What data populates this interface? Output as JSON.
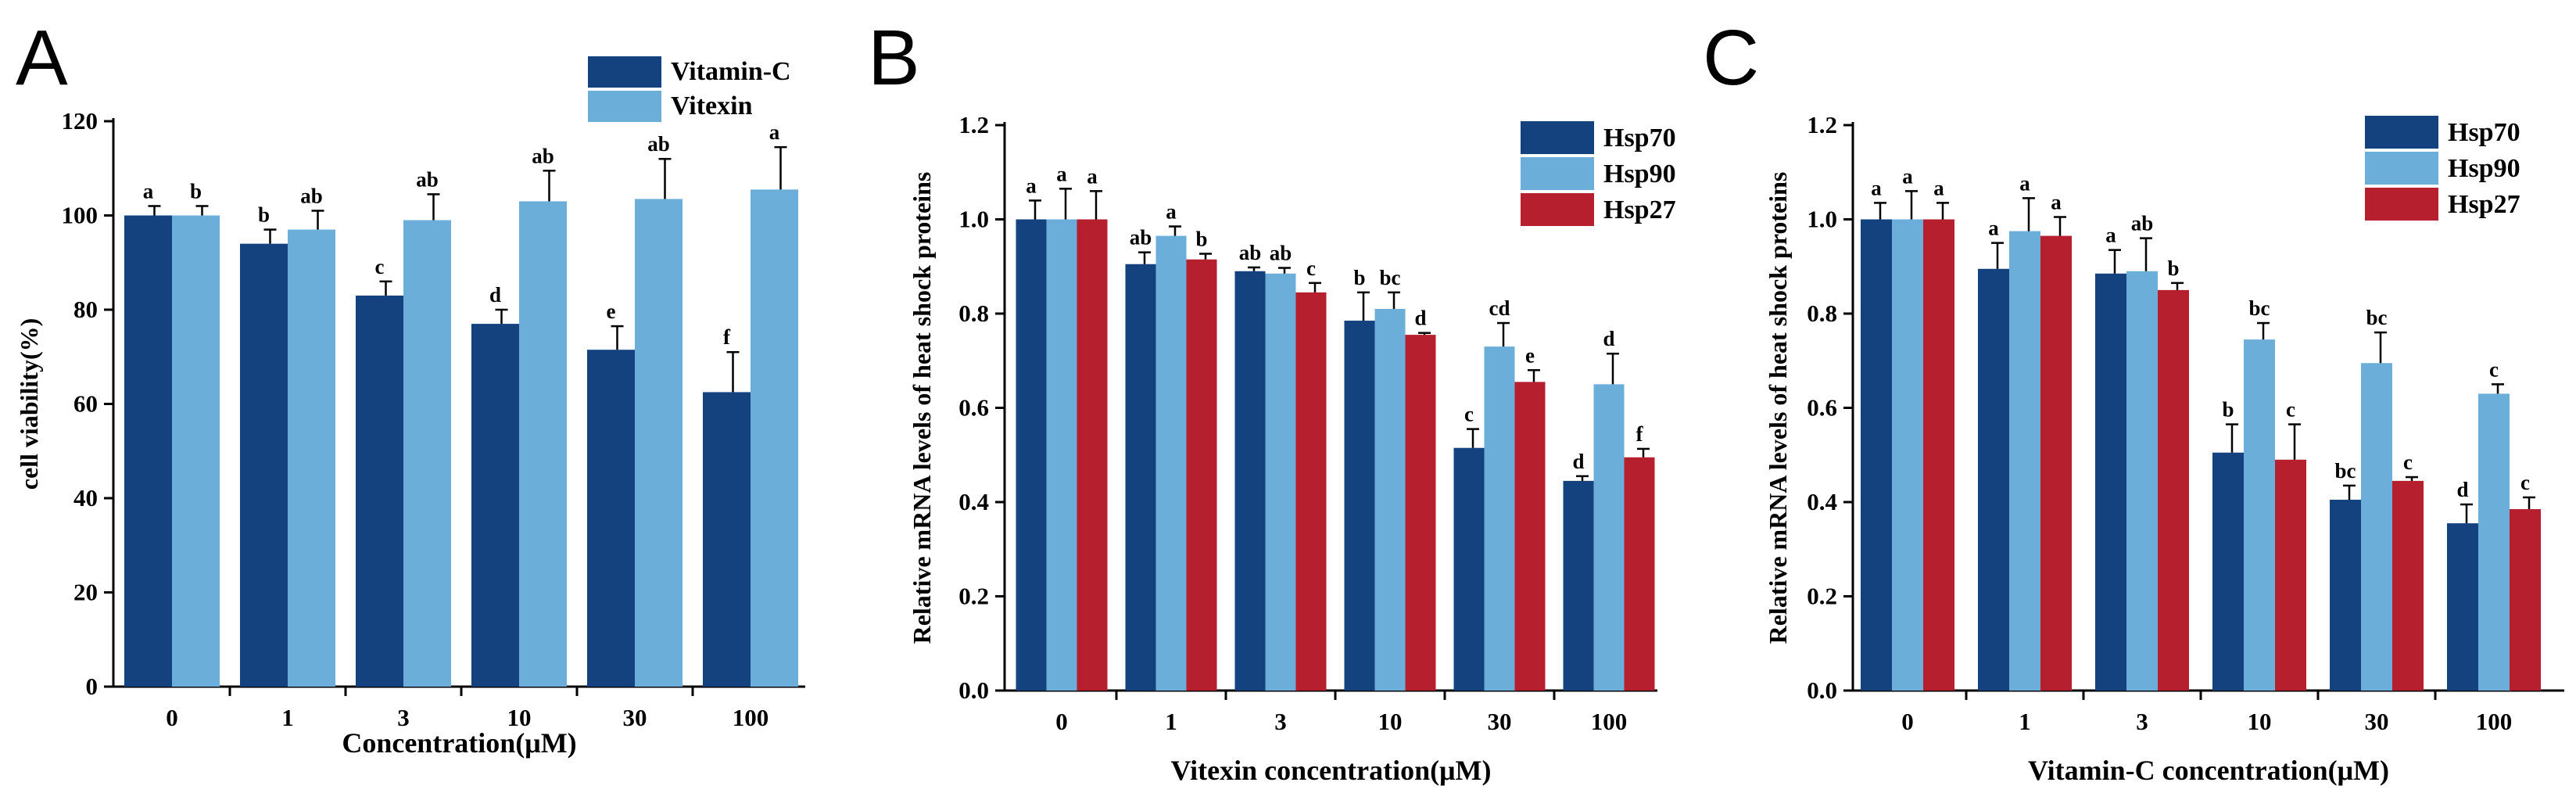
{
  "colors": {
    "vitamin_c": "#14427f",
    "vitexin": "#6baed9",
    "hsp70": "#14427f",
    "hsp90": "#6baed9",
    "hsp27": "#b51f2e"
  },
  "chart_data": [
    {
      "panel": "A",
      "type": "bar",
      "title": "",
      "xlabel": "Concentration(μM)",
      "ylabel": "cell viability(%)",
      "categories": [
        "0",
        "1",
        "3",
        "10",
        "30",
        "100"
      ],
      "ylim": [
        0,
        120
      ],
      "yticks": [
        "0",
        "20",
        "40",
        "60",
        "80",
        "100",
        "120"
      ],
      "legend_position": "top-right",
      "series": [
        {
          "name": "Vitamin-C",
          "color_key": "vitamin_c",
          "values": [
            100,
            94,
            83,
            77,
            71.5,
            62.5
          ],
          "errors": [
            2,
            3,
            3,
            3,
            5,
            8.5
          ],
          "labels": [
            "a",
            "b",
            "c",
            "d",
            "e",
            "f"
          ]
        },
        {
          "name": "Vitexin",
          "color_key": "vitexin",
          "values": [
            100,
            97,
            99,
            103,
            103.5,
            105.5
          ],
          "errors": [
            2,
            4,
            5.5,
            6.5,
            8.5,
            9
          ],
          "labels": [
            "b",
            "ab",
            "ab",
            "ab",
            "ab",
            "a"
          ]
        }
      ]
    },
    {
      "panel": "B",
      "type": "bar",
      "title": "",
      "xlabel": "Vitexin concentration(μM)",
      "ylabel": "Relative mRNA  levels of heat shock proteins",
      "categories": [
        "0",
        "1",
        "3",
        "10",
        "30",
        "100"
      ],
      "ylim": [
        0,
        1.2
      ],
      "yticks": [
        "0.0",
        "0.2",
        "0.4",
        "0.6",
        "0.8",
        "1.0",
        "1.2"
      ],
      "legend_position": "top-right",
      "series": [
        {
          "name": "Hsp70",
          "color_key": "hsp70",
          "values": [
            1.0,
            0.905,
            0.89,
            0.785,
            0.515,
            0.445
          ],
          "errors": [
            0.04,
            0.025,
            0.008,
            0.06,
            0.04,
            0.01
          ],
          "labels": [
            "a",
            "ab",
            "ab",
            "b",
            "c",
            "d"
          ]
        },
        {
          "name": "Hsp90",
          "color_key": "hsp90",
          "values": [
            1.0,
            0.965,
            0.885,
            0.81,
            0.73,
            0.65
          ],
          "errors": [
            0.065,
            0.02,
            0.012,
            0.035,
            0.05,
            0.065
          ],
          "labels": [
            "a",
            "a",
            "ab",
            "bc",
            "cd",
            "d"
          ]
        },
        {
          "name": "Hsp27",
          "color_key": "hsp27",
          "values": [
            1.0,
            0.915,
            0.845,
            0.755,
            0.655,
            0.495
          ],
          "errors": [
            0.06,
            0.012,
            0.02,
            0.004,
            0.025,
            0.018
          ],
          "labels": [
            "a",
            "b",
            "c",
            "d",
            "e",
            "f"
          ]
        }
      ]
    },
    {
      "panel": "C",
      "type": "bar",
      "title": "",
      "xlabel": "Vitamin-C concentration(μM)",
      "ylabel": "Relative mRNA  levels of heat shock proteins",
      "categories": [
        "0",
        "1",
        "3",
        "10",
        "30",
        "100"
      ],
      "ylim": [
        0,
        1.2
      ],
      "yticks": [
        "0.0",
        "0.2",
        "0.4",
        "0.6",
        "0.8",
        "1.0",
        "1.2"
      ],
      "legend_position": "top-right",
      "series": [
        {
          "name": "Hsp70",
          "color_key": "hsp70",
          "values": [
            1.0,
            0.895,
            0.885,
            0.505,
            0.405,
            0.355
          ],
          "errors": [
            0.035,
            0.055,
            0.05,
            0.06,
            0.03,
            0.04
          ],
          "labels": [
            "a",
            "a",
            "a",
            "b",
            "bc",
            "d"
          ]
        },
        {
          "name": "Hsp90",
          "color_key": "hsp90",
          "values": [
            1.0,
            0.975,
            0.89,
            0.745,
            0.695,
            0.63
          ],
          "errors": [
            0.06,
            0.07,
            0.07,
            0.035,
            0.065,
            0.02
          ],
          "labels": [
            "a",
            "a",
            "ab",
            "bc",
            "bc",
            "c"
          ]
        },
        {
          "name": "Hsp27",
          "color_key": "hsp27",
          "values": [
            1.0,
            0.965,
            0.85,
            0.49,
            0.445,
            0.385
          ],
          "errors": [
            0.035,
            0.04,
            0.015,
            0.075,
            0.008,
            0.025
          ],
          "labels": [
            "a",
            "a",
            "b",
            "c",
            "c",
            "c"
          ]
        }
      ]
    }
  ]
}
